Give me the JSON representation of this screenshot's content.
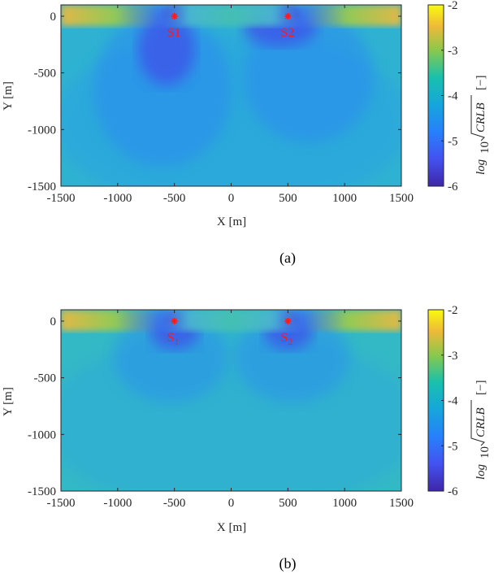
{
  "chart_data": [
    {
      "type": "heatmap",
      "caption": "(a)",
      "xlabel": "X [m]",
      "ylabel": "Y [m]",
      "xlim": [
        -1500,
        1500
      ],
      "ylim": [
        -1500,
        100
      ],
      "x_ticks": [
        "-1500",
        "-1000",
        "-500",
        "0",
        "500",
        "1000",
        "1500"
      ],
      "y_ticks": [
        "0",
        "-500",
        "-1000",
        "-1500"
      ],
      "colorbar": {
        "label_main": "log",
        "label_sub": "10",
        "label_rad": "CRLB",
        "label_unit": "[−]",
        "range": [
          -6,
          -2
        ],
        "ticks": [
          "-2",
          "-3",
          "-4",
          "-5",
          "-6"
        ]
      },
      "sources": [
        {
          "base": "S",
          "index": "1",
          "x": -500,
          "y": 0
        },
        {
          "base": "S",
          "index": "2",
          "x": 500,
          "y": 0
        }
      ]
    },
    {
      "type": "heatmap",
      "caption": "(b)",
      "xlabel": "X [m]",
      "ylabel": "Y [m]",
      "xlim": [
        -1500,
        1500
      ],
      "ylim": [
        -1500,
        100
      ],
      "x_ticks": [
        "-1500",
        "-1000",
        "-500",
        "0",
        "500",
        "1000",
        "1500"
      ],
      "y_ticks": [
        "0",
        "-500",
        "-1000",
        "-1500"
      ],
      "colorbar": {
        "label_main": "log",
        "label_sub": "10",
        "label_rad": "CRLB",
        "label_unit": "[−]",
        "range": [
          -6,
          -2
        ],
        "ticks": [
          "-2",
          "-3",
          "-4",
          "-5",
          "-6"
        ]
      },
      "sources": [
        {
          "base": "S",
          "index": "1",
          "x": -500,
          "y": 0
        },
        {
          "base": "S",
          "index": "2",
          "x": 500,
          "y": 0
        }
      ]
    }
  ]
}
